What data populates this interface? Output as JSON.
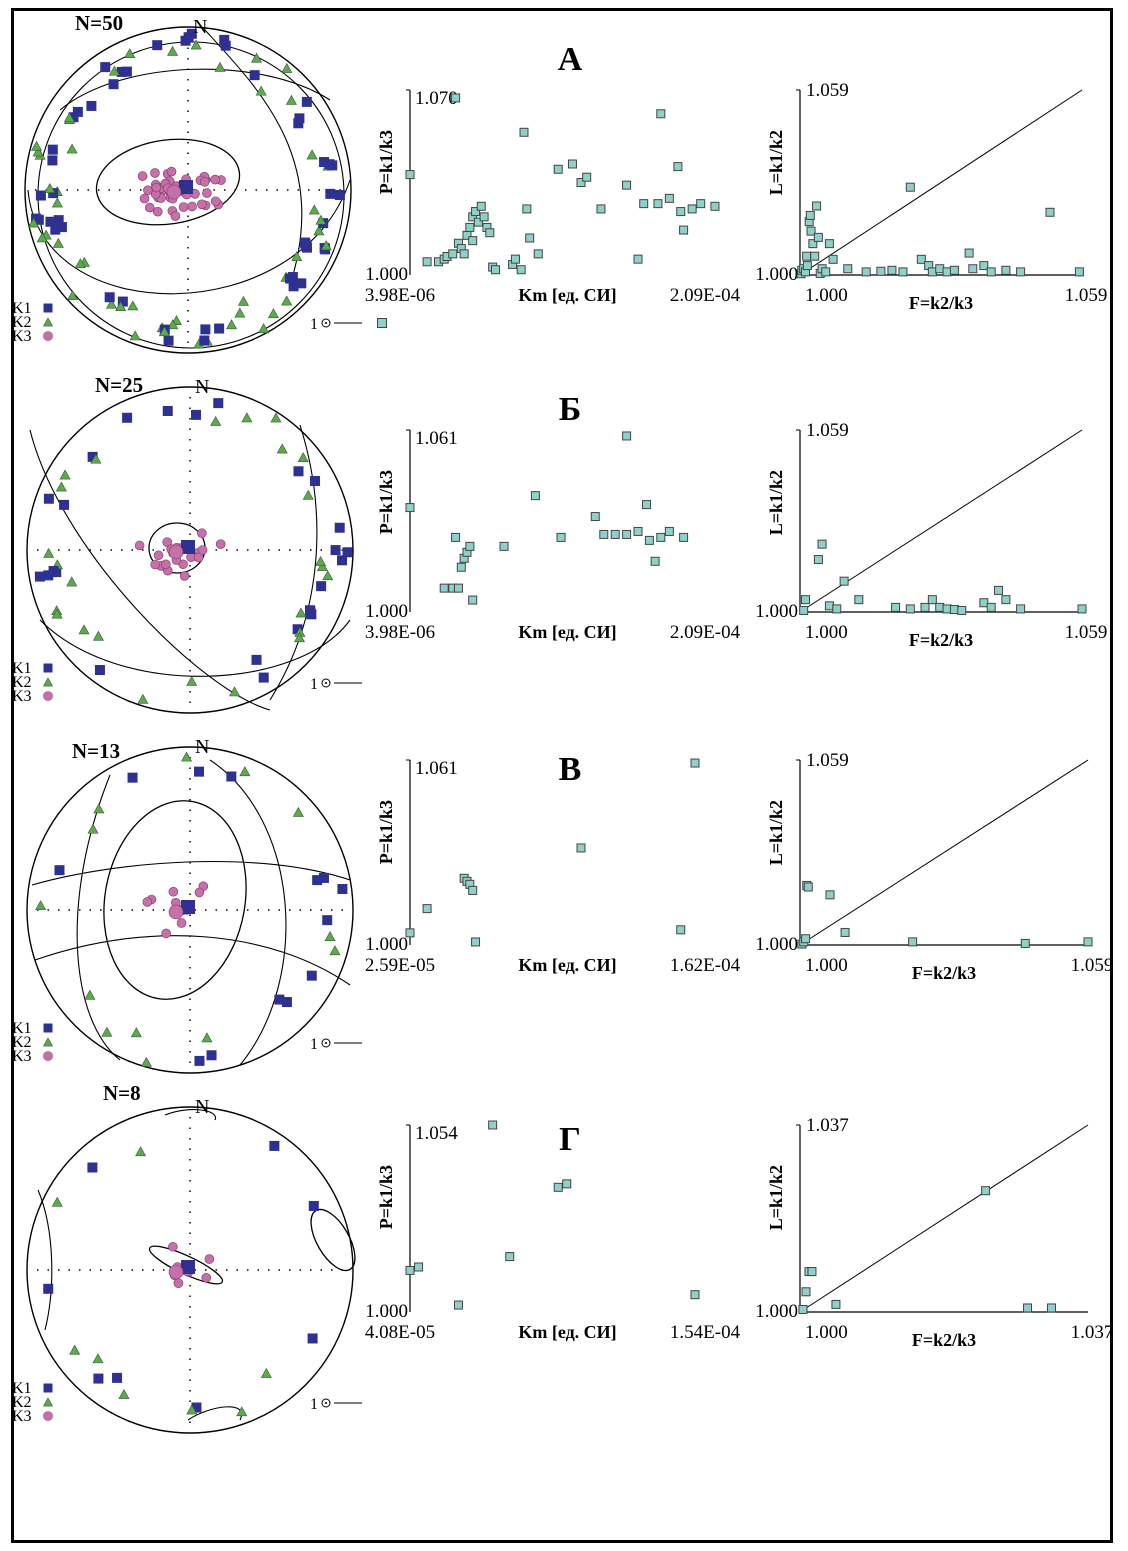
{
  "legend": {
    "k1": "K1",
    "k2": "K2",
    "k3": "K3",
    "mean_marker": "1"
  },
  "colors": {
    "k1": "#2e3192",
    "k2": "#5fa84f",
    "k3": "#c66fa8",
    "point": "#8fd0c8",
    "point_stroke": "#444444"
  },
  "chart_data": [
    {
      "panel": "А",
      "stereonet": {
        "n_label": "N=50",
        "north": "N"
      },
      "p_km": {
        "type": "scatter",
        "ylabel": "P=k1/k3",
        "xlabel": "Km [ед. СИ]",
        "y_max_label": "1.070",
        "y_min_label": "1.000",
        "x_min_label": "3.98E-06",
        "x_max_label": "2.09E-04",
        "ylim": [
          1.0,
          1.07
        ],
        "points": [
          [
            0.0,
            1.038
          ],
          [
            0.16,
            1.067
          ],
          [
            0.06,
            1.005
          ],
          [
            0.1,
            1.005
          ],
          [
            0.12,
            1.006
          ],
          [
            0.13,
            1.007
          ],
          [
            0.15,
            1.008
          ],
          [
            0.17,
            1.012
          ],
          [
            0.18,
            1.01
          ],
          [
            0.19,
            1.008
          ],
          [
            0.2,
            1.015
          ],
          [
            0.21,
            1.018
          ],
          [
            0.22,
            1.013
          ],
          [
            0.22,
            1.022
          ],
          [
            0.23,
            1.024
          ],
          [
            0.24,
            1.02
          ],
          [
            0.25,
            1.026
          ],
          [
            0.26,
            1.022
          ],
          [
            0.27,
            1.018
          ],
          [
            0.28,
            1.016
          ],
          [
            0.29,
            1.003
          ],
          [
            0.3,
            1.002
          ],
          [
            0.36,
            1.004
          ],
          [
            0.37,
            1.006
          ],
          [
            0.39,
            1.002
          ],
          [
            0.4,
            1.054
          ],
          [
            0.41,
            1.025
          ],
          [
            0.42,
            1.014
          ],
          [
            0.45,
            1.008
          ],
          [
            0.52,
            1.04
          ],
          [
            0.57,
            1.042
          ],
          [
            0.6,
            1.035
          ],
          [
            0.62,
            1.037
          ],
          [
            0.67,
            1.025
          ],
          [
            0.76,
            1.034
          ],
          [
            0.8,
            1.006
          ],
          [
            0.82,
            1.027
          ],
          [
            0.87,
            1.027
          ],
          [
            0.88,
            1.061
          ],
          [
            0.91,
            1.029
          ],
          [
            0.94,
            1.041
          ],
          [
            0.95,
            1.024
          ],
          [
            0.96,
            1.017
          ],
          [
            0.99,
            1.025
          ],
          [
            1.02,
            1.027
          ],
          [
            1.07,
            1.026
          ]
        ]
      },
      "l_f": {
        "type": "scatter",
        "ylabel": "L=k1/k2",
        "xlabel": "F=k2/k3",
        "y_max_label": "1.059",
        "x_min_label": "1.000",
        "x_max_label": "1.059",
        "origin_label": "1.000",
        "lim": [
          1.0,
          1.059
        ],
        "points": [
          [
            1.0003,
            1.0004
          ],
          [
            1.0005,
            1.0015
          ],
          [
            1.001,
            1.002
          ],
          [
            1.0015,
            1.001
          ],
          [
            1.002,
            1.003
          ],
          [
            1.0018,
            1.006
          ],
          [
            1.0025,
            1.017
          ],
          [
            1.0028,
            1.019
          ],
          [
            1.003,
            1.014
          ],
          [
            1.0035,
            1.01
          ],
          [
            1.004,
            1.006
          ],
          [
            1.005,
            1.012
          ],
          [
            1.0045,
            1.022
          ],
          [
            1.0055,
            1.0005
          ],
          [
            1.006,
            1.002
          ],
          [
            1.007,
            1.001
          ],
          [
            1.008,
            1.01
          ],
          [
            1.009,
            1.005
          ],
          [
            1.013,
            1.002
          ],
          [
            1.018,
            1.001
          ],
          [
            1.022,
            1.0012
          ],
          [
            1.025,
            1.0015
          ],
          [
            1.028,
            1.001
          ],
          [
            1.03,
            1.028
          ],
          [
            1.033,
            1.005
          ],
          [
            1.035,
            1.003
          ],
          [
            1.036,
            1.001
          ],
          [
            1.038,
            1.002
          ],
          [
            1.04,
            1.001
          ],
          [
            1.042,
            1.0015
          ],
          [
            1.046,
            1.007
          ],
          [
            1.047,
            1.002
          ],
          [
            1.05,
            1.003
          ],
          [
            1.052,
            1.001
          ],
          [
            1.056,
            1.0015
          ],
          [
            1.06,
            1.001
          ],
          [
            1.068,
            1.02
          ],
          [
            1.076,
            1.001
          ]
        ]
      }
    },
    {
      "panel": "Б",
      "stereonet": {
        "n_label": "N=25",
        "north": "N"
      },
      "p_km": {
        "type": "scatter",
        "ylabel": "P=k1/k3",
        "xlabel": "Km [ед. СИ]",
        "y_max_label": "1.061",
        "y_min_label": "1.000",
        "x_min_label": "3.98E-06",
        "x_max_label": "2.09E-04",
        "ylim": [
          1.0,
          1.061
        ],
        "points": [
          [
            0.0,
            1.035
          ],
          [
            0.12,
            1.008
          ],
          [
            0.15,
            1.008
          ],
          [
            0.16,
            1.025
          ],
          [
            0.17,
            1.008
          ],
          [
            0.18,
            1.015
          ],
          [
            0.19,
            1.018
          ],
          [
            0.2,
            1.02
          ],
          [
            0.21,
            1.022
          ],
          [
            0.22,
            1.004
          ],
          [
            0.33,
            1.022
          ],
          [
            0.44,
            1.039
          ],
          [
            0.53,
            1.025
          ],
          [
            0.65,
            1.032
          ],
          [
            0.68,
            1.026
          ],
          [
            0.72,
            1.026
          ],
          [
            0.76,
            1.026
          ],
          [
            0.76,
            1.059
          ],
          [
            0.8,
            1.027
          ],
          [
            0.83,
            1.036
          ],
          [
            0.84,
            1.024
          ],
          [
            0.86,
            1.017
          ],
          [
            0.88,
            1.025
          ],
          [
            0.91,
            1.027
          ],
          [
            0.96,
            1.025
          ]
        ]
      },
      "l_f": {
        "type": "scatter",
        "ylabel": "L=k1/k2",
        "xlabel": "F=k2/k3",
        "y_max_label": "1.059",
        "x_min_label": "1.000",
        "x_max_label": "1.059",
        "origin_label": "1.000",
        "lim": [
          1.0,
          1.059
        ],
        "points": [
          [
            1.001,
            1.0005
          ],
          [
            1.0015,
            1.004
          ],
          [
            1.005,
            1.017
          ],
          [
            1.006,
            1.022
          ],
          [
            1.008,
            1.002
          ],
          [
            1.01,
            1.001
          ],
          [
            1.012,
            1.01
          ],
          [
            1.016,
            1.004
          ],
          [
            1.026,
            1.0015
          ],
          [
            1.03,
            1.001
          ],
          [
            1.034,
            1.0015
          ],
          [
            1.036,
            1.004
          ],
          [
            1.038,
            1.0015
          ],
          [
            1.04,
            1.001
          ],
          [
            1.042,
            1.0008
          ],
          [
            1.044,
            1.0005
          ],
          [
            1.05,
            1.003
          ],
          [
            1.052,
            1.0015
          ],
          [
            1.054,
            1.007
          ],
          [
            1.056,
            1.004
          ],
          [
            1.06,
            1.001
          ],
          [
            1.08,
            1.001
          ]
        ]
      }
    },
    {
      "panel": "В",
      "stereonet": {
        "n_label": "N=13",
        "north": "N"
      },
      "p_km": {
        "type": "scatter",
        "ylabel": "P=k1/k3",
        "xlabel": "Km [ед. СИ]",
        "y_max_label": "1.061",
        "y_min_label": "1.000",
        "x_min_label": "2.59E-05",
        "x_max_label": "1.62E-04",
        "ylim": [
          1.0,
          1.061
        ],
        "points": [
          [
            0.0,
            1.004
          ],
          [
            0.06,
            1.012
          ],
          [
            0.19,
            1.022
          ],
          [
            0.2,
            1.021
          ],
          [
            0.21,
            1.02
          ],
          [
            0.22,
            1.018
          ],
          [
            0.23,
            1.001
          ],
          [
            0.6,
            1.032
          ],
          [
            0.95,
            1.005
          ],
          [
            1.0,
            1.06
          ]
        ]
      },
      "l_f": {
        "type": "scatter",
        "ylabel": "L=k1/k2",
        "xlabel": "F=k2/k3",
        "y_max_label": "1.059",
        "x_min_label": "1.000",
        "x_max_label": "1.059",
        "origin_label": "1.000",
        "lim": [
          1.0,
          1.059
        ],
        "points": [
          [
            1.0005,
            1.0003
          ],
          [
            1.001,
            1.001
          ],
          [
            1.0015,
            1.002
          ],
          [
            1.0018,
            1.019
          ],
          [
            1.0022,
            1.0185
          ],
          [
            1.008,
            1.016
          ],
          [
            1.012,
            1.004
          ],
          [
            1.03,
            1.001
          ],
          [
            1.06,
            1.0005
          ],
          [
            1.096,
            1.001
          ]
        ]
      }
    },
    {
      "panel": "Г",
      "stereonet": {
        "n_label": "N=8",
        "north": "N"
      },
      "p_km": {
        "type": "scatter",
        "ylabel": "P=k1/k3",
        "xlabel": "Km [ед. СИ]",
        "y_max_label": "1.054",
        "y_min_label": "1.000",
        "x_min_label": "4.08E-05",
        "x_max_label": "1.54E-04",
        "ylim": [
          1.0,
          1.054
        ],
        "points": [
          [
            0.0,
            1.012
          ],
          [
            0.03,
            1.013
          ],
          [
            0.17,
            1.002
          ],
          [
            0.29,
            1.054
          ],
          [
            0.35,
            1.016
          ],
          [
            0.52,
            1.036
          ],
          [
            0.55,
            1.037
          ],
          [
            1.0,
            1.005
          ]
        ]
      },
      "l_f": {
        "type": "scatter",
        "ylabel": "L=k1/k2",
        "xlabel": "F=k2/k3",
        "y_max_label": "1.037",
        "x_min_label": "1.000",
        "x_max_label": "1.037",
        "origin_label": "1.000",
        "lim": [
          1.0,
          1.037
        ],
        "points": [
          [
            1.0005,
            1.0005
          ],
          [
            1.001,
            1.004
          ],
          [
            1.0015,
            1.008
          ],
          [
            1.002,
            1.008
          ],
          [
            1.006,
            1.0015
          ],
          [
            1.031,
            1.024
          ],
          [
            1.038,
            1.0008
          ],
          [
            1.042,
            1.0008
          ]
        ]
      }
    }
  ]
}
